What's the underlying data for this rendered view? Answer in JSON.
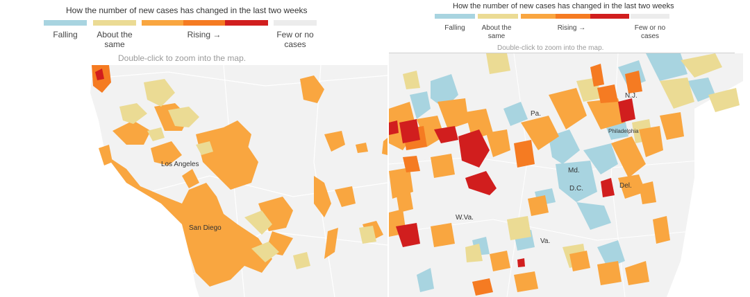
{
  "colors": {
    "falling": "#a8d4e0",
    "about_same": "#ebdb94",
    "rising_1": "#f9a640",
    "rising_2": "#f57b22",
    "rising_3": "#d11e1e",
    "few_cases": "#ececec",
    "land": "#f2f2f2"
  },
  "left": {
    "legend": {
      "title": "How the number of new cases has changed in the last two weeks",
      "falling": "Falling",
      "about_same": "About the same",
      "rising": "Rising →",
      "few_cases": "Few or no cases"
    },
    "hint": "Double-click to zoom into the map.",
    "labels": {
      "city1": "Los Angeles",
      "city2": "San Diego"
    }
  },
  "right": {
    "legend": {
      "title": "How the number of new cases has changed in the last two weeks",
      "falling": "Falling",
      "about_same": "About the same",
      "rising": "Rising →",
      "few_cases": "Few or no cases"
    },
    "hint": "Double-click to zoom into the map.",
    "labels": {
      "pa": "Pa.",
      "nj": "N.J.",
      "philadelphia": "Philadelphia",
      "md": "Md.",
      "dc": "D.C.",
      "del": "Del.",
      "wva": "W.Va.",
      "va": "Va."
    }
  }
}
